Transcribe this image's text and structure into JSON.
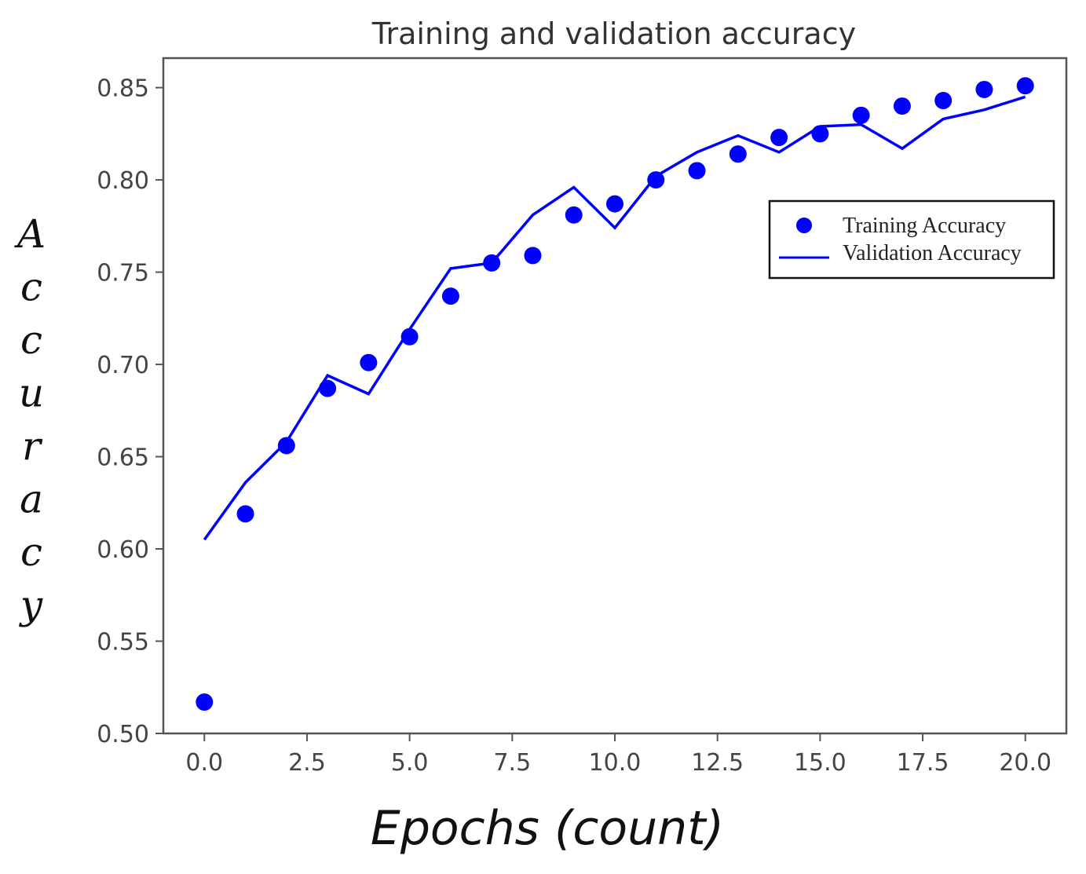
{
  "chart_data": {
    "type": "line",
    "title": "Training and validation accuracy",
    "xlabel": "Epochs (count)",
    "ylabel": "Accuracy",
    "xlim": [
      -1,
      21
    ],
    "ylim": [
      0.5,
      0.866
    ],
    "xticks": [
      0,
      2.5,
      5,
      7.5,
      10,
      12.5,
      15,
      17.5,
      20
    ],
    "xtick_labels": [
      "0.0",
      "2.5",
      "5.0",
      "7.5",
      "10.0",
      "12.5",
      "15.0",
      "17.5",
      "20.0"
    ],
    "yticks": [
      0.5,
      0.55,
      0.6,
      0.65,
      0.7,
      0.75,
      0.8,
      0.85
    ],
    "ytick_labels": [
      "0.50",
      "0.55",
      "0.60",
      "0.65",
      "0.70",
      "0.75",
      "0.80",
      "0.85"
    ],
    "grid": false,
    "legend_position": "upper-right",
    "series": [
      {
        "name": "Training Accuracy",
        "style": "markers",
        "color": "#0000ff",
        "x": [
          0,
          1,
          2,
          3,
          4,
          5,
          6,
          7,
          8,
          9,
          10,
          11,
          12,
          13,
          14,
          15,
          16,
          17,
          18,
          19,
          20
        ],
        "y": [
          0.517,
          0.619,
          0.656,
          0.687,
          0.701,
          0.715,
          0.737,
          0.755,
          0.759,
          0.781,
          0.787,
          0.8,
          0.805,
          0.814,
          0.823,
          0.825,
          0.835,
          0.84,
          0.843,
          0.849,
          0.851
        ]
      },
      {
        "name": "Validation Accuracy",
        "style": "line",
        "color": "#0000ff",
        "x": [
          0,
          1,
          2,
          3,
          4,
          5,
          6,
          7,
          8,
          9,
          10,
          11,
          12,
          13,
          14,
          15,
          16,
          17,
          18,
          19,
          20
        ],
        "y": [
          0.605,
          0.636,
          0.658,
          0.694,
          0.684,
          0.719,
          0.752,
          0.755,
          0.781,
          0.796,
          0.774,
          0.802,
          0.815,
          0.824,
          0.815,
          0.829,
          0.83,
          0.817,
          0.833,
          0.838,
          0.845
        ]
      }
    ]
  }
}
